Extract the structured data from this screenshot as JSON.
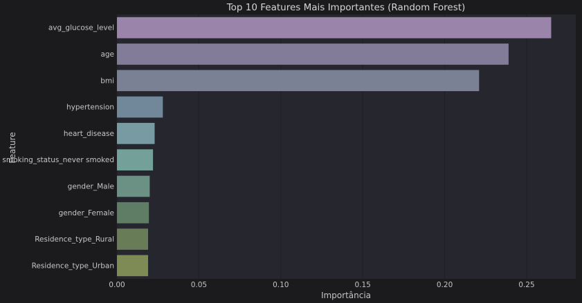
{
  "chart_data": {
    "type": "bar",
    "orientation": "horizontal",
    "title": "Top 10 Features Mais Importantes (Random Forest)",
    "xlabel": "Importância",
    "ylabel": "Feature",
    "xlim": [
      0,
      0.28
    ],
    "xticks": [
      0.0,
      0.05,
      0.1,
      0.15,
      0.2,
      0.25
    ],
    "xtick_labels": [
      "0.00",
      "0.05",
      "0.10",
      "0.15",
      "0.20",
      "0.25"
    ],
    "grid": "vertical",
    "categories": [
      "avg_glucose_level",
      "age",
      "bmi",
      "hypertension",
      "heart_disease",
      "smoking_status_never smoked",
      "gender_Male",
      "gender_Female",
      "Residence_type_Rural",
      "Residence_type_Urban"
    ],
    "values": [
      0.265,
      0.239,
      0.221,
      0.028,
      0.023,
      0.022,
      0.02,
      0.0195,
      0.019,
      0.019
    ],
    "colors": [
      "#9a84aa",
      "#827c98",
      "#7b8195",
      "#71879a",
      "#789aa2",
      "#74a09a",
      "#6b9084",
      "#5f7c64",
      "#687d57",
      "#7f8b55"
    ]
  },
  "theme": {
    "page_bg": "#1b1b1e",
    "axes_bg": "#26262f",
    "grid_color": "#1f1f25",
    "text_color": "#c4c4c4",
    "title_color": "#d4d4d4"
  }
}
